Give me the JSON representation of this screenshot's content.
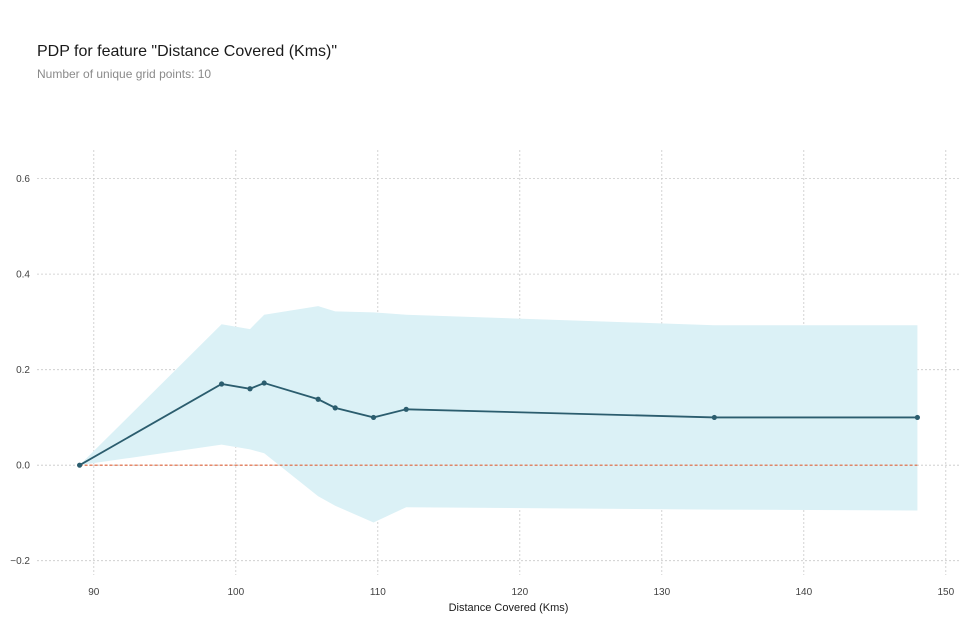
{
  "chart_data": {
    "type": "line",
    "title": "PDP for feature \"Distance Covered (Kms)\"",
    "subtitle": "Number of unique grid points: 10",
    "xlabel": "Distance Covered (Kms)",
    "ylabel": "",
    "xlim": [
      86,
      151
    ],
    "ylim": [
      -0.23,
      0.66
    ],
    "xticks": [
      90,
      100,
      110,
      120,
      130,
      140,
      150
    ],
    "yticks": [
      -0.2,
      0.0,
      0.2,
      0.4,
      0.6
    ],
    "grid": true,
    "series": [
      {
        "name": "pdp",
        "x": [
          89,
          99,
          101,
          102,
          105.8,
          107,
          109.7,
          112,
          133.7,
          148
        ],
        "values": [
          0.0,
          0.17,
          0.16,
          0.172,
          0.138,
          0.12,
          0.1,
          0.117,
          0.1,
          0.1
        ],
        "upper": [
          0.0,
          0.295,
          0.285,
          0.315,
          0.333,
          0.322,
          0.32,
          0.315,
          0.293,
          0.293
        ],
        "lower": [
          0.0,
          0.043,
          0.033,
          0.025,
          -0.065,
          -0.085,
          -0.12,
          -0.088,
          -0.093,
          -0.095
        ],
        "color": "#2b5d6e",
        "band_color": "#dbf1f6"
      }
    ],
    "baseline": {
      "value": 0.0,
      "color": "#e0633a"
    }
  }
}
